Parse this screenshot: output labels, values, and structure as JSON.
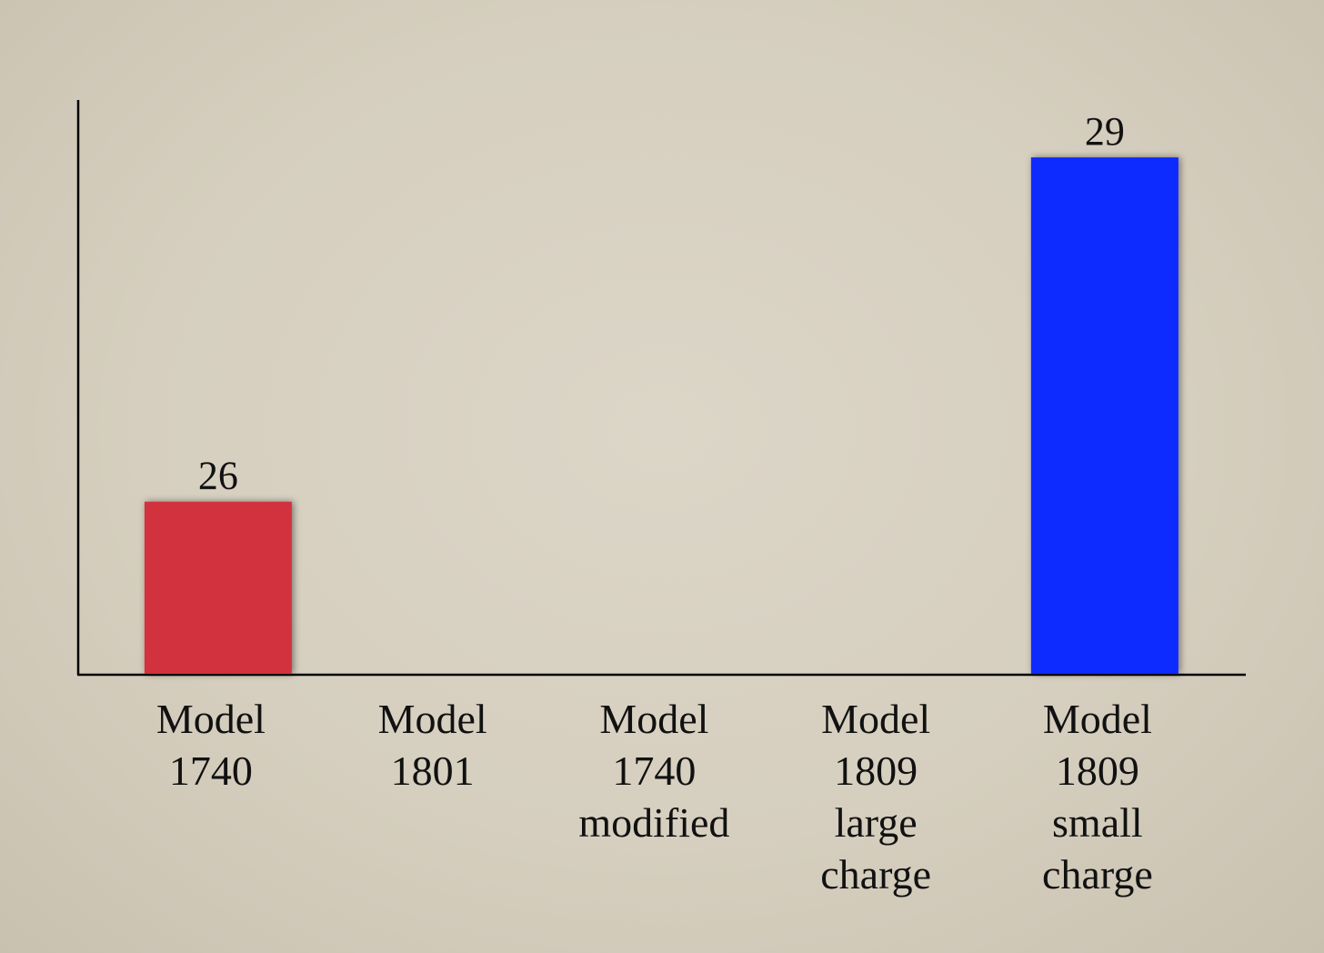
{
  "chart_data": {
    "type": "bar",
    "categories": [
      "Model 1740",
      "Model 1801",
      "Model 1740 modified",
      "Model 1809 large charge",
      "Model 1809 small charge"
    ],
    "values": [
      26,
      null,
      null,
      null,
      29
    ],
    "colors": [
      "#d1303c",
      null,
      null,
      null,
      "#0b2bff"
    ],
    "ylim": [
      24.5,
      29.5
    ]
  }
}
